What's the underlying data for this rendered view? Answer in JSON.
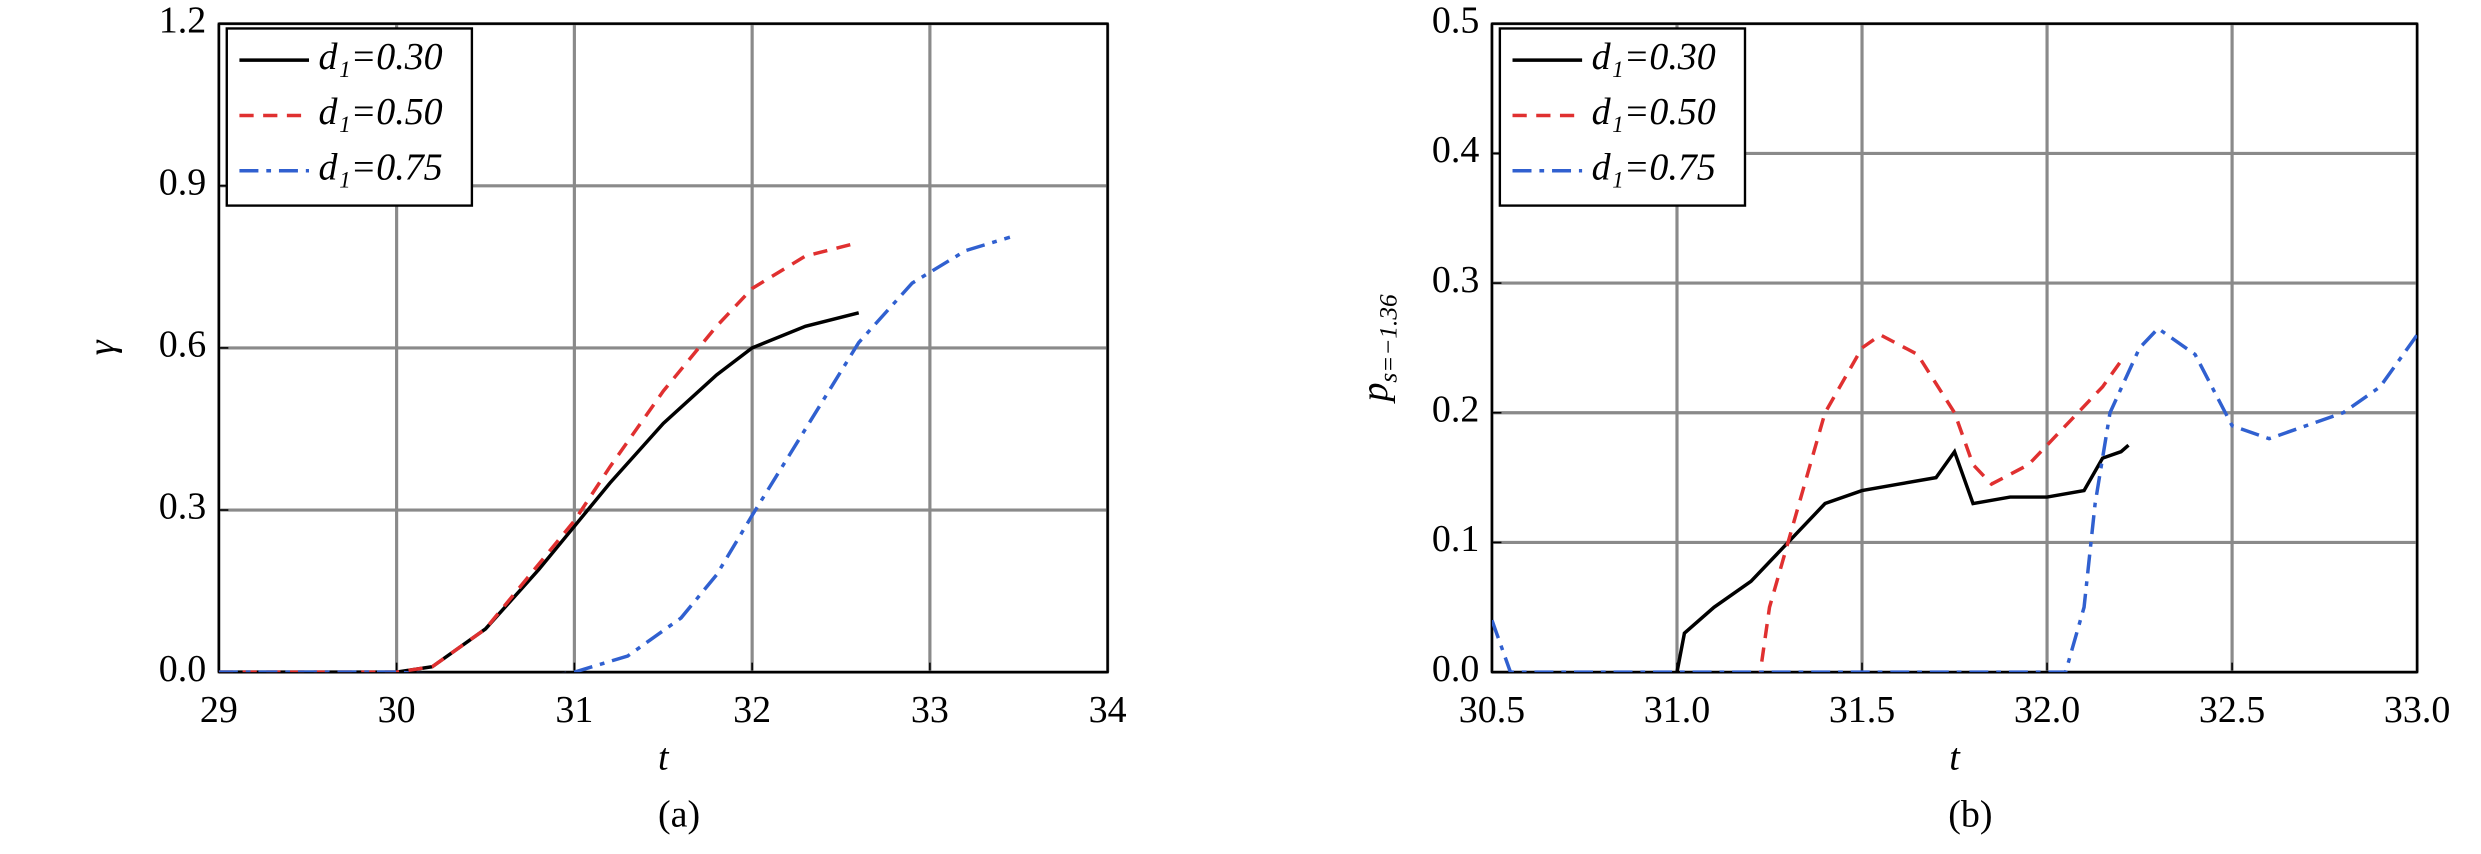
{
  "chart_data": [
    {
      "type": "line",
      "xlabel": "t",
      "ylabel": "γ",
      "panel_label": "(a)",
      "xlim": [
        29,
        34
      ],
      "xticks": [
        29,
        30,
        31,
        32,
        33,
        34
      ],
      "ylim": [
        0,
        1.2
      ],
      "yticks": [
        {
          "value": 0,
          "label": "0.0"
        },
        0.3,
        0.6,
        0.9,
        1.2
      ],
      "grid": true,
      "legend": "upper-left",
      "series": [
        {
          "name": "d₁=0.30",
          "color": "#000000",
          "dash": "solid",
          "x": [
            29,
            30,
            30.2,
            30.5,
            30.8,
            31,
            31.2,
            31.5,
            31.8,
            32,
            32.3,
            32.6
          ],
          "values": [
            0,
            0,
            0.01,
            0.08,
            0.19,
            0.27,
            0.35,
            0.46,
            0.55,
            0.6,
            0.64,
            0.665
          ]
        },
        {
          "name": "d₁=0.50",
          "color": "#e03030",
          "dash": "dashed",
          "x": [
            29,
            30,
            30.2,
            30.5,
            30.8,
            31,
            31.2,
            31.5,
            31.8,
            32,
            32.3,
            32.6
          ],
          "values": [
            0,
            0,
            0.01,
            0.08,
            0.2,
            0.28,
            0.38,
            0.52,
            0.64,
            0.71,
            0.77,
            0.795
          ]
        },
        {
          "name": "d₁=0.75",
          "color": "#3060d0",
          "dash": "dashdot",
          "x": [
            29,
            30,
            30.5,
            30.8,
            31,
            31.3,
            31.6,
            31.8,
            32,
            32.3,
            32.6,
            32.9,
            33.2,
            33.45
          ],
          "values": [
            0,
            0,
            -0.01,
            -0.01,
            0,
            0.03,
            0.1,
            0.18,
            0.29,
            0.45,
            0.61,
            0.72,
            0.78,
            0.805
          ]
        }
      ]
    },
    {
      "type": "line",
      "xlabel": "t",
      "ylabel": "p",
      "ylabel_sub": "s=−1.36",
      "panel_label": "(b)",
      "xlim": [
        30.5,
        33.0
      ],
      "xticks": [
        30.5,
        {
          "value": 31,
          "label": "31.0"
        },
        31.5,
        {
          "value": 32,
          "label": "32.0"
        },
        32.5,
        {
          "value": 33,
          "label": "33.0"
        }
      ],
      "ylim": [
        0,
        0.5
      ],
      "yticks": [
        {
          "value": 0,
          "label": "0.0"
        },
        0.1,
        0.2,
        0.3,
        0.4,
        0.5
      ],
      "grid": true,
      "legend": "upper-left",
      "series": [
        {
          "name": "d₁=0.30",
          "color": "#000000",
          "dash": "solid",
          "x": [
            31.0,
            31.02,
            31.1,
            31.2,
            31.3,
            31.4,
            31.5,
            31.6,
            31.7,
            31.75,
            31.8,
            31.9,
            32.0,
            32.1,
            32.15,
            32.2,
            32.22
          ],
          "values": [
            0,
            0.03,
            0.05,
            0.07,
            0.1,
            0.13,
            0.14,
            0.145,
            0.15,
            0.17,
            0.13,
            0.135,
            0.135,
            0.14,
            0.165,
            0.17,
            0.175
          ]
        },
        {
          "name": "d₁=0.50",
          "color": "#e03030",
          "dash": "dashed",
          "x": [
            31.22,
            31.25,
            31.3,
            31.4,
            31.5,
            31.55,
            31.65,
            31.75,
            31.8,
            31.85,
            31.95,
            32.05,
            32.15,
            32.2
          ],
          "values": [
            -0.01,
            0.05,
            0.1,
            0.2,
            0.25,
            0.26,
            0.245,
            0.2,
            0.16,
            0.145,
            0.16,
            0.19,
            0.22,
            0.24
          ]
        },
        {
          "name": "d₁=0.75",
          "color": "#3060d0",
          "dash": "dashdot",
          "x": [
            30.5,
            30.55,
            31.0,
            32.05,
            32.1,
            32.13,
            32.17,
            32.25,
            32.3,
            32.4,
            32.5,
            32.6,
            32.8,
            32.9,
            33.0
          ],
          "values": [
            0.04,
            0,
            0,
            0,
            0.05,
            0.13,
            0.2,
            0.25,
            0.265,
            0.245,
            0.19,
            0.18,
            0.2,
            0.22,
            0.26
          ]
        }
      ]
    }
  ]
}
